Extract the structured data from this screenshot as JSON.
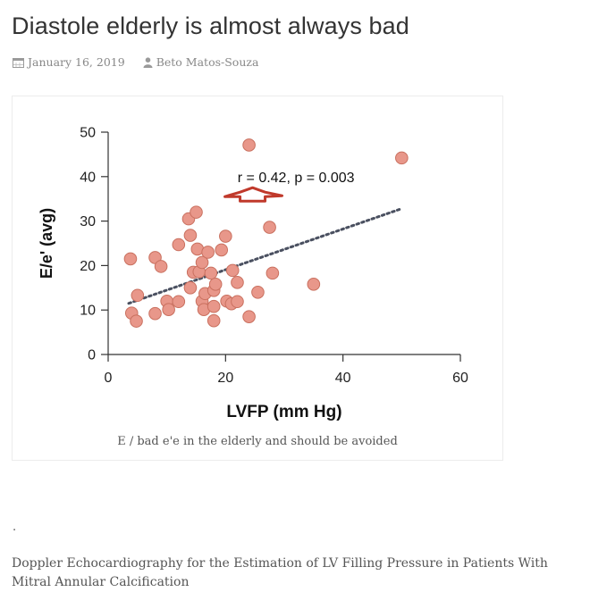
{
  "post": {
    "title": "Diastole elderly is almost always bad",
    "date": "January 16, 2019",
    "author": "Beto Matos-Souza",
    "date_icon": "calendar-icon",
    "author_icon": "user-icon"
  },
  "figure": {
    "caption": "E / bad e'e in the elderly and should be avoided"
  },
  "body": {
    "dot": ".",
    "source": "Doppler Echocardiography for the Estimation of LV Filling Pressure in Patients With Mitral Annular Calcification"
  },
  "colors": {
    "point_fill": "#e8978a",
    "point_stroke": "#c9705f",
    "trend": "#4a5060",
    "arrow": "#c0392b"
  },
  "chart_data": {
    "type": "scatter",
    "xlabel": "LVFP (mm Hg)",
    "ylabel": "E/e' (avg)",
    "xlim": [
      0,
      60
    ],
    "ylim": [
      0,
      50
    ],
    "xticks": [
      0,
      20,
      40,
      60
    ],
    "yticks": [
      0,
      10,
      20,
      30,
      40,
      50
    ],
    "annotation": "r = 0.42, p = 0.003",
    "grid": false,
    "trendline": {
      "x": [
        3.5,
        50
      ],
      "y": [
        11.5,
        32.8
      ],
      "style": "dotted"
    },
    "points": [
      [
        3.8,
        21.5
      ],
      [
        4,
        9.3
      ],
      [
        4.8,
        7.5
      ],
      [
        5,
        13.3
      ],
      [
        8,
        9.2
      ],
      [
        8,
        21.8
      ],
      [
        9,
        19.8
      ],
      [
        10,
        12
      ],
      [
        10.3,
        10.1
      ],
      [
        12,
        11.9
      ],
      [
        12,
        24.7
      ],
      [
        13.7,
        30.5
      ],
      [
        14,
        26.8
      ],
      [
        14,
        15
      ],
      [
        14.5,
        18.5
      ],
      [
        15,
        32
      ],
      [
        15.2,
        23.7
      ],
      [
        15.5,
        18.6
      ],
      [
        16,
        20.7
      ],
      [
        16,
        12
      ],
      [
        16.3,
        10.1
      ],
      [
        16.5,
        13.7
      ],
      [
        17,
        23
      ],
      [
        17.5,
        18.3
      ],
      [
        18,
        7.6
      ],
      [
        18,
        10.8
      ],
      [
        18,
        14.4
      ],
      [
        18.3,
        15.8
      ],
      [
        19.3,
        23.5
      ],
      [
        20,
        26.6
      ],
      [
        20.2,
        12
      ],
      [
        21,
        11.4
      ],
      [
        21.2,
        18.9
      ],
      [
        22,
        11.9
      ],
      [
        22,
        16.2
      ],
      [
        24,
        47.1
      ],
      [
        24,
        8.5
      ],
      [
        25.5,
        14
      ],
      [
        27.5,
        28.6
      ],
      [
        28,
        18.3
      ],
      [
        35,
        15.8
      ],
      [
        50,
        44.2
      ]
    ]
  }
}
